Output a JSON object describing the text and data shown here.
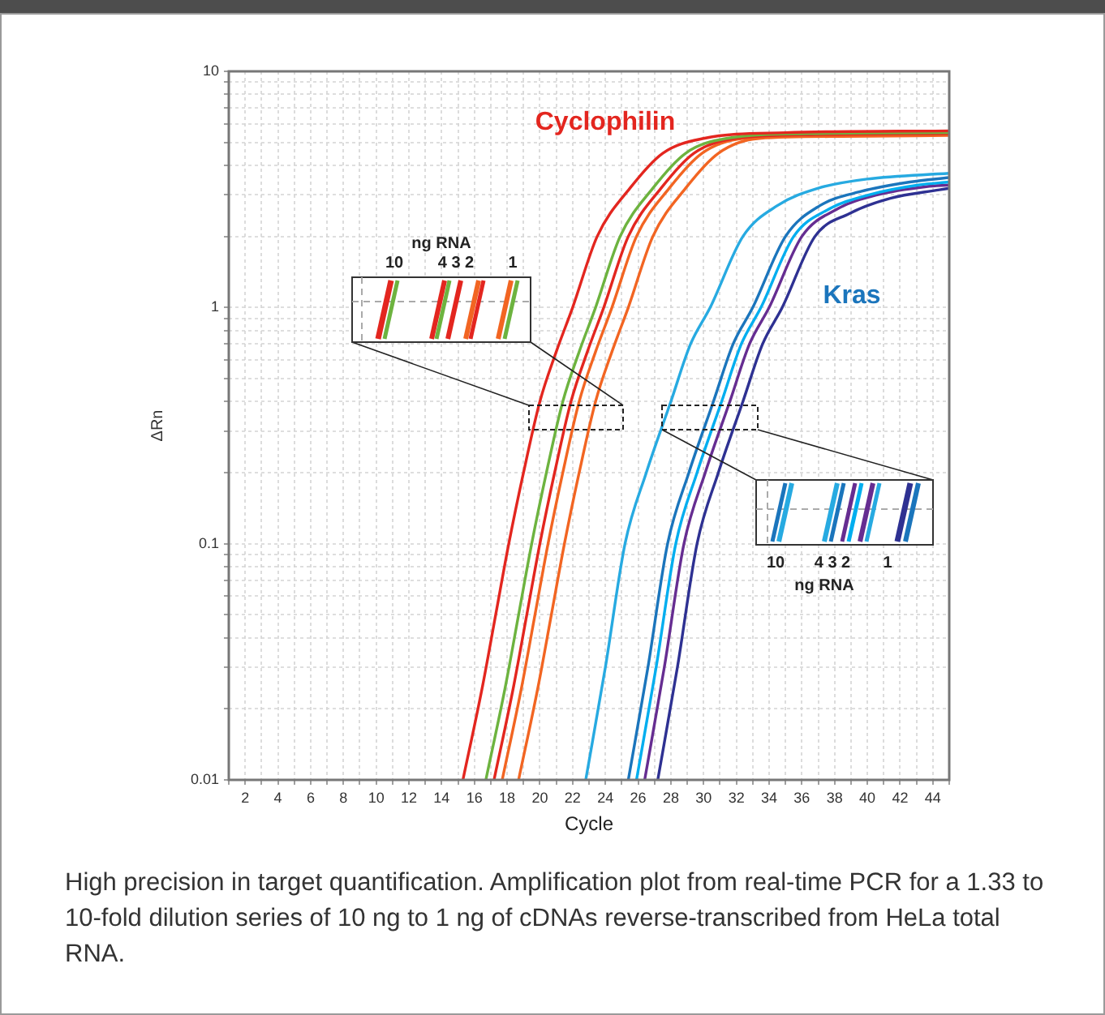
{
  "chart_data": {
    "type": "line",
    "xlabel": "Cycle",
    "ylabel": "ΔRn",
    "log": "y",
    "grid": true,
    "marker": "none",
    "line_style": "solid",
    "xlim": [
      1,
      45
    ],
    "xticks": [
      {
        "value": 1,
        "label": null
      },
      2,
      {
        "value": 3,
        "label": null
      },
      4,
      {
        "value": 5,
        "label": null
      },
      6,
      {
        "value": 7,
        "label": null
      },
      8,
      {
        "value": 9,
        "label": null
      },
      10,
      {
        "value": 11,
        "label": null
      },
      12,
      {
        "value": 13,
        "label": null
      },
      14,
      {
        "value": 15,
        "label": null
      },
      16,
      {
        "value": 17,
        "label": null
      },
      18,
      {
        "value": 19,
        "label": null
      },
      20,
      {
        "value": 21,
        "label": null
      },
      22,
      {
        "value": 23,
        "label": null
      },
      24,
      {
        "value": 25,
        "label": null
      },
      26,
      {
        "value": 27,
        "label": null
      },
      28,
      {
        "value": 29,
        "label": null
      },
      30,
      {
        "value": 31,
        "label": null
      },
      32,
      {
        "value": 33,
        "label": null
      },
      34,
      {
        "value": 35,
        "label": null
      },
      36,
      {
        "value": 37,
        "label": null
      },
      38,
      {
        "value": 39,
        "label": null
      },
      40,
      {
        "value": 41,
        "label": null
      },
      42,
      {
        "value": 43,
        "label": null
      },
      44,
      {
        "value": 45,
        "label": null
      }
    ],
    "ylim": [
      0.01,
      10
    ],
    "yticks": [
      0.01,
      {
        "value": 0.02,
        "label": null
      },
      {
        "value": 0.03,
        "label": null
      },
      {
        "value": 0.04,
        "label": null
      },
      {
        "value": 0.05,
        "label": null
      },
      {
        "value": 0.06,
        "label": null
      },
      {
        "value": 0.07,
        "label": null
      },
      {
        "value": 0.08,
        "label": null
      },
      {
        "value": 0.09,
        "label": null
      },
      0.1,
      {
        "value": 0.2,
        "label": null
      },
      {
        "value": 0.3,
        "label": null
      },
      {
        "value": 0.4,
        "label": null
      },
      {
        "value": 0.5,
        "label": null
      },
      {
        "value": 0.6,
        "label": null
      },
      {
        "value": 0.7,
        "label": null
      },
      {
        "value": 0.8,
        "label": null
      },
      {
        "value": 0.9,
        "label": null
      },
      1,
      {
        "value": 2,
        "label": null
      },
      {
        "value": 3,
        "label": null
      },
      {
        "value": 4,
        "label": null
      },
      {
        "value": 5,
        "label": null
      },
      {
        "value": 6,
        "label": null
      },
      {
        "value": 7,
        "label": null
      },
      {
        "value": 8,
        "label": null
      },
      {
        "value": 9,
        "label": null
      },
      10
    ],
    "series": [
      {
        "color": "#e3261f",
        "x": [
          15.3,
          16.5,
          17.3,
          18.1,
          19,
          20,
          21,
          22,
          23.5,
          25.5,
          27.5,
          30,
          35,
          45
        ],
        "values": [
          0.01,
          0.025,
          0.05,
          0.1,
          0.2,
          0.4,
          0.65,
          1,
          2,
          3.2,
          4.5,
          5.2,
          5.5,
          5.6
        ]
      },
      {
        "color": "#6db33f",
        "x": [
          16.7,
          17.9,
          18.7,
          19.5,
          20.4,
          21.4,
          22.4,
          23.4,
          24.9,
          26.9,
          28.9,
          31.4,
          36.4,
          45
        ],
        "values": [
          0.01,
          0.025,
          0.05,
          0.1,
          0.2,
          0.4,
          0.65,
          1,
          2,
          3.2,
          4.5,
          5.2,
          5.45,
          5.5
        ]
      },
      {
        "color": "#e3261f",
        "x": [
          17.2,
          18.4,
          19.2,
          20,
          20.9,
          21.9,
          22.9,
          23.9,
          25.4,
          27.4,
          29.4,
          31.9,
          36.9,
          45
        ],
        "values": [
          0.01,
          0.025,
          0.05,
          0.1,
          0.2,
          0.4,
          0.65,
          1,
          2,
          3.2,
          4.5,
          5.2,
          5.4,
          5.45
        ]
      },
      {
        "color": "#f26522",
        "x": [
          17.7,
          18.9,
          19.7,
          20.5,
          21.4,
          22.4,
          23.4,
          24.4,
          25.9,
          27.9,
          29.9,
          32.4,
          37.4,
          45
        ],
        "values": [
          0.01,
          0.025,
          0.05,
          0.1,
          0.2,
          0.4,
          0.65,
          1,
          2,
          3.2,
          4.5,
          5.2,
          5.35,
          5.4
        ]
      },
      {
        "color": "#f26522",
        "x": [
          18.7,
          19.9,
          20.7,
          21.5,
          22.4,
          23.4,
          24.4,
          25.4,
          26.9,
          28.9,
          30.9,
          33.4,
          38.4,
          45
        ],
        "values": [
          0.01,
          0.025,
          0.05,
          0.1,
          0.2,
          0.4,
          0.65,
          1,
          2,
          3.2,
          4.5,
          5.2,
          5.3,
          5.35
        ]
      },
      {
        "color": "#27aae1",
        "x": [
          22.8,
          24,
          25.2,
          26.5,
          28,
          29.2,
          30.4,
          32.4,
          34.5,
          37,
          40,
          45
        ],
        "values": [
          0.01,
          0.03,
          0.1,
          0.2,
          0.4,
          0.7,
          1,
          2,
          2.7,
          3.2,
          3.5,
          3.7
        ]
      },
      {
        "color": "#1b75bc",
        "x": [
          25.4,
          26.6,
          27.8,
          29.1,
          30.6,
          31.8,
          33,
          35,
          37.1,
          39.6,
          42.6,
          45
        ],
        "values": [
          0.01,
          0.03,
          0.1,
          0.2,
          0.4,
          0.7,
          1,
          2,
          2.7,
          3.1,
          3.4,
          3.55
        ]
      },
      {
        "color": "#00aeef",
        "x": [
          25.9,
          27.1,
          28.3,
          29.6,
          31.1,
          32.3,
          33.5,
          35.5,
          37.6,
          40.1,
          43.1,
          45
        ],
        "values": [
          0.01,
          0.03,
          0.1,
          0.2,
          0.4,
          0.7,
          1,
          2,
          2.6,
          3,
          3.3,
          3.4
        ]
      },
      {
        "color": "#662d91",
        "x": [
          26.4,
          27.6,
          28.8,
          30.1,
          31.6,
          32.8,
          34,
          36,
          38.1,
          40.6,
          43.6,
          45
        ],
        "values": [
          0.01,
          0.03,
          0.1,
          0.2,
          0.4,
          0.7,
          1,
          2,
          2.6,
          3,
          3.25,
          3.3
        ]
      },
      {
        "color": "#2e3192",
        "x": [
          27.2,
          28.4,
          29.6,
          30.9,
          32.4,
          33.6,
          34.8,
          36.8,
          38.9,
          41.4,
          44.4,
          45
        ],
        "values": [
          0.01,
          0.03,
          0.1,
          0.2,
          0.4,
          0.7,
          1,
          2,
          2.5,
          2.9,
          3.15,
          3.2
        ]
      }
    ],
    "annotations": [
      "Cyclophilin",
      "Kras",
      "ng RNA",
      "10",
      "4 3 2",
      "1",
      "10",
      "4 3 2",
      "1",
      "ng RNA",
      "High precision in target quantification. Amplification plot from real-time PCR for a 1.33 to 10-fold dilution series of 10 ng to 1 ng of cDNAs reverse-transcribed from HeLa total RNA."
    ]
  }
}
